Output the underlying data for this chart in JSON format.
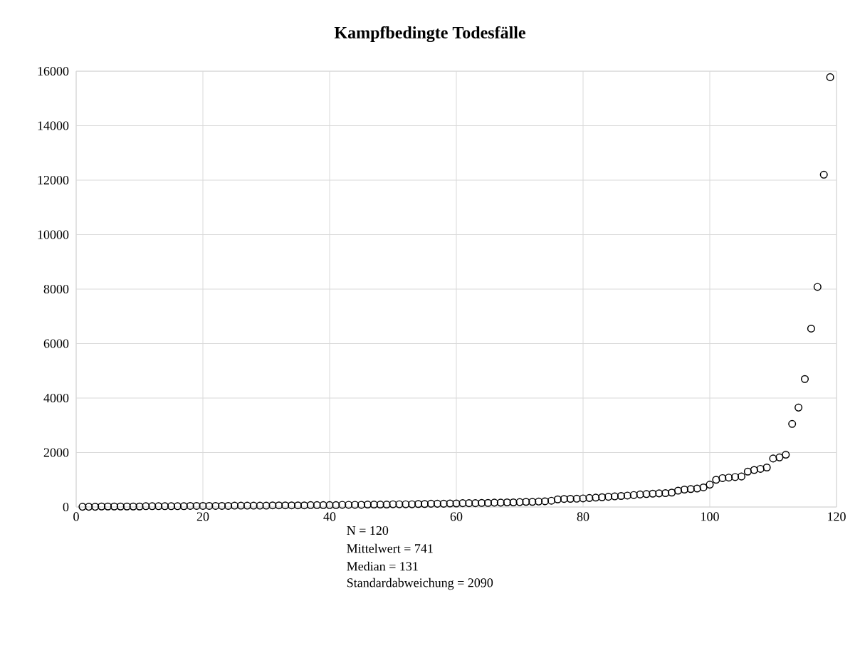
{
  "chart_data": {
    "type": "scatter",
    "title": "Kampfbedingte Todesfälle",
    "x": [
      1,
      2,
      3,
      4,
      5,
      6,
      7,
      8,
      9,
      10,
      11,
      12,
      13,
      14,
      15,
      16,
      17,
      18,
      19,
      20,
      21,
      22,
      23,
      24,
      25,
      26,
      27,
      28,
      29,
      30,
      31,
      32,
      33,
      34,
      35,
      36,
      37,
      38,
      39,
      40,
      41,
      42,
      43,
      44,
      45,
      46,
      47,
      48,
      49,
      50,
      51,
      52,
      53,
      54,
      55,
      56,
      57,
      58,
      59,
      60,
      61,
      62,
      63,
      64,
      65,
      66,
      67,
      68,
      69,
      70,
      71,
      72,
      73,
      74,
      75,
      76,
      77,
      78,
      79,
      80,
      81,
      82,
      83,
      84,
      85,
      86,
      87,
      88,
      89,
      90,
      91,
      92,
      93,
      94,
      95,
      96,
      97,
      98,
      99,
      100,
      101,
      102,
      103,
      104,
      105,
      106,
      107,
      108,
      109,
      110,
      111,
      112,
      113,
      114,
      115,
      116,
      117,
      118,
      119
    ],
    "values": [
      10,
      10,
      10,
      20,
      20,
      20,
      20,
      20,
      20,
      20,
      30,
      30,
      30,
      30,
      30,
      30,
      30,
      40,
      40,
      40,
      40,
      40,
      40,
      40,
      50,
      50,
      50,
      50,
      50,
      50,
      60,
      60,
      60,
      60,
      60,
      60,
      70,
      70,
      70,
      70,
      70,
      80,
      80,
      80,
      80,
      90,
      90,
      90,
      90,
      100,
      100,
      100,
      100,
      110,
      110,
      120,
      120,
      120,
      130,
      131,
      140,
      140,
      140,
      150,
      150,
      160,
      160,
      170,
      170,
      180,
      190,
      190,
      200,
      210,
      230,
      280,
      295,
      300,
      305,
      315,
      330,
      345,
      360,
      375,
      390,
      405,
      420,
      440,
      460,
      475,
      490,
      500,
      510,
      530,
      600,
      640,
      660,
      680,
      720,
      820,
      1000,
      1060,
      1080,
      1100,
      1120,
      1300,
      1360,
      1400,
      1450,
      1780,
      1820,
      1920,
      3050,
      3650,
      4700,
      6550,
      8080,
      12200,
      15780
    ],
    "color": "#000000",
    "marker": "circle",
    "grid": true,
    "xlim": [
      0,
      120
    ],
    "ylim": [
      0,
      16000
    ],
    "xticks": [
      0,
      20,
      40,
      60,
      80,
      100,
      120
    ],
    "yticks": [
      0,
      2000,
      4000,
      6000,
      8000,
      10000,
      12000,
      14000,
      16000
    ],
    "annotations": [
      "N = 120",
      "Mittelwert = 741",
      "Median = 131",
      "Standardabweichung =  2090"
    ]
  }
}
